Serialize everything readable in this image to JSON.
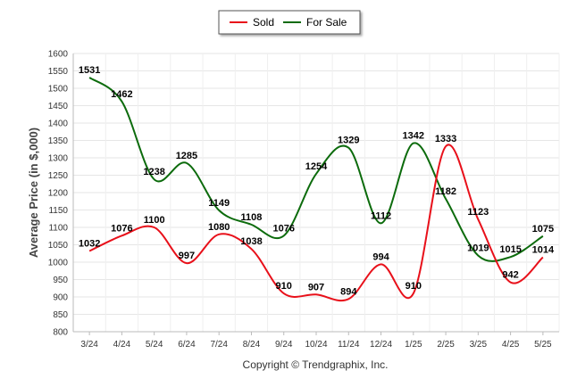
{
  "chart_data": {
    "type": "line",
    "categories": [
      "3/24",
      "4/24",
      "5/24",
      "6/24",
      "7/24",
      "8/24",
      "9/24",
      "10/24",
      "11/24",
      "12/24",
      "1/25",
      "2/25",
      "3/25",
      "4/25",
      "5/25"
    ],
    "series": [
      {
        "name": "Sold",
        "color": "#e8101a",
        "values": [
          1032,
          1076,
          1100,
          997,
          1080,
          1038,
          910,
          907,
          894,
          994,
          910,
          1333,
          1123,
          942,
          1014
        ]
      },
      {
        "name": "For Sale",
        "color": "#0c6b0c",
        "values": [
          1531,
          1462,
          1238,
          1285,
          1149,
          1108,
          1076,
          1254,
          1329,
          1112,
          1342,
          1182,
          1019,
          1015,
          1075
        ]
      }
    ],
    "ylabel": "Average Price (in $,000)",
    "ylim": [
      800,
      1600
    ],
    "yticks": [
      800,
      850,
      900,
      950,
      1000,
      1050,
      1100,
      1150,
      1200,
      1250,
      1300,
      1350,
      1400,
      1450,
      1500,
      1550,
      1600
    ],
    "grid": true,
    "legend_position": "top-center"
  },
  "footer": {
    "copyright": "Copyright © Trendgraphix, Inc."
  }
}
